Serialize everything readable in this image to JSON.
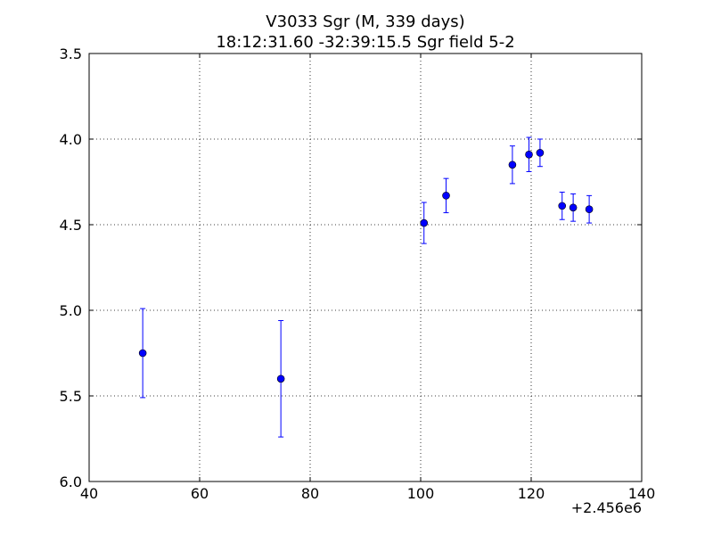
{
  "chart_data": {
    "type": "scatter",
    "title_line1": "V3033 Sgr  (M, 339 days)",
    "title_line2": "18:12:31.60 -32:39:15.5 Sgr field 5-2",
    "xlabel": "",
    "ylabel": "",
    "x_offset_label": "+2.456e6",
    "xlim": [
      40,
      140
    ],
    "ylim": [
      3.5,
      6.0
    ],
    "y_inverted": true,
    "x_ticks": [
      40,
      60,
      80,
      100,
      120,
      140
    ],
    "x_tick_labels": [
      "40",
      "60",
      "80",
      "100",
      "120",
      "140"
    ],
    "y_ticks": [
      3.5,
      4.0,
      4.5,
      5.0,
      5.5,
      6.0
    ],
    "y_tick_labels": [
      "3.5",
      "4.0",
      "4.5",
      "5.0",
      "5.5",
      "6.0"
    ],
    "grid": true,
    "series": [
      {
        "color": "#0000ff",
        "x": [
          49.7,
          74.7,
          100.6,
          104.6,
          116.6,
          119.6,
          121.6,
          125.6,
          127.6,
          130.5
        ],
        "y": [
          5.25,
          5.4,
          4.49,
          4.33,
          4.15,
          4.09,
          4.08,
          4.39,
          4.4,
          4.41
        ],
        "err": [
          0.26,
          0.34,
          0.12,
          0.1,
          0.11,
          0.1,
          0.08,
          0.08,
          0.08,
          0.08
        ]
      }
    ]
  }
}
